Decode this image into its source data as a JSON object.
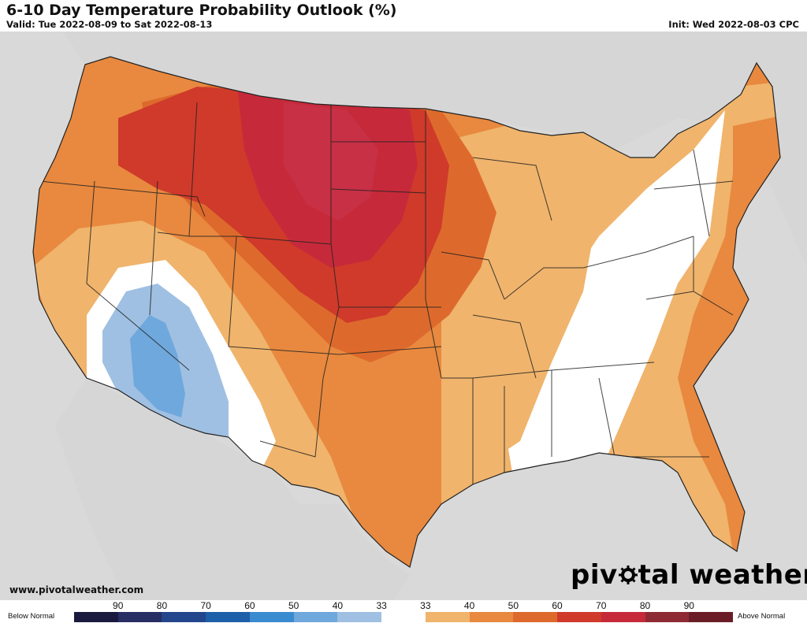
{
  "header": {
    "title": "6-10 Day Temperature Probability Outlook (%)",
    "valid": "Valid: Tue 2022-08-09 to Sat 2022-08-13",
    "init": "Init: Wed 2022-08-03 CPC"
  },
  "footer": {
    "website": "www.pivotalweather.com",
    "brand_left": "piv",
    "brand_right": "tal weather"
  },
  "legend": {
    "below_label": "Below Normal",
    "above_label": "Above Normal",
    "ticks": [
      "90",
      "80",
      "70",
      "60",
      "50",
      "40",
      "33",
      "33",
      "40",
      "50",
      "60",
      "70",
      "80",
      "90"
    ],
    "colors": [
      "#1a1a3f",
      "#262e63",
      "#24468c",
      "#1d5fa8",
      "#3a8bd0",
      "#6fa8dc",
      "#9fc0e2",
      "#ffffff",
      "#f0b46c",
      "#e8893f",
      "#dd6a2c",
      "#cf3a2b",
      "#c62a3a",
      "#8e2a34",
      "#6b1d26"
    ]
  },
  "map": {
    "colors": {
      "ocean": "#d9d9d9",
      "land_outside": "#d6d6d6",
      "normal": "#ffffff",
      "above_33": "#f0b46c",
      "above_40": "#e8893f",
      "above_50": "#dd6a2c",
      "above_60": "#cf3a2b",
      "above_70": "#c62a3a",
      "below_33": "#9fc0e2",
      "below_40": "#6fa8dc"
    }
  }
}
